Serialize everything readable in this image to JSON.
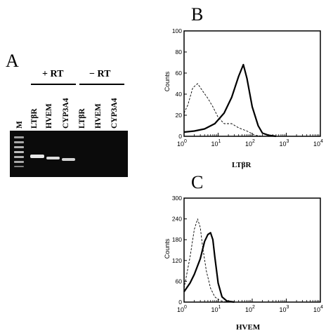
{
  "panel_a": {
    "letter": "A",
    "lane_m": "M",
    "rt_plus": "+ RT",
    "rt_minus": "− RT",
    "lanes": [
      "LTβR",
      "HVEM",
      "CYP3A4",
      "LTβR",
      "HVEM",
      "CYP3A4"
    ]
  },
  "chart_data": [
    {
      "panel": "B",
      "type": "line",
      "xscale": "log",
      "xlim": [
        1,
        10000
      ],
      "ylim": [
        0,
        100
      ],
      "yticks": [
        0,
        20,
        40,
        60,
        80,
        100
      ],
      "xticks": [
        "10^0",
        "10^1",
        "10^2",
        "10^3",
        "10^4"
      ],
      "ylabel": "Counts",
      "xlabel": "LTβR",
      "series": [
        {
          "style": "dashed",
          "x": [
            1,
            1.3,
            1.8,
            2.5,
            3.5,
            5,
            7,
            10,
            15,
            25,
            40,
            70,
            120,
            200
          ],
          "y": [
            22,
            30,
            46,
            50,
            43,
            36,
            28,
            18,
            12,
            12,
            8,
            5,
            1,
            0
          ]
        },
        {
          "style": "solid",
          "x": [
            1,
            2,
            4,
            8,
            15,
            25,
            40,
            55,
            70,
            100,
            150,
            200,
            300,
            500
          ],
          "y": [
            4,
            5,
            7,
            12,
            22,
            37,
            57,
            68,
            55,
            28,
            10,
            3,
            1,
            0
          ]
        }
      ]
    },
    {
      "panel": "C",
      "type": "line",
      "xscale": "log",
      "xlim": [
        1,
        10000
      ],
      "ylim": [
        0,
        300
      ],
      "yticks": [
        0,
        60,
        120,
        180,
        240,
        300
      ],
      "xticks": [
        "10^0",
        "10^1",
        "10^2",
        "10^3",
        "10^4"
      ],
      "ylabel": "Counts",
      "xlabel": "HVEM",
      "series": [
        {
          "style": "dashed",
          "x": [
            1,
            1.5,
            2,
            2.5,
            3,
            3.5,
            4.5,
            6,
            8,
            11,
            15,
            25
          ],
          "y": [
            40,
            130,
            210,
            240,
            215,
            160,
            90,
            40,
            15,
            5,
            1,
            0
          ]
        },
        {
          "style": "solid",
          "x": [
            1,
            1.5,
            2,
            3,
            4,
            5,
            6,
            7,
            8,
            10,
            13,
            18,
            30
          ],
          "y": [
            30,
            55,
            80,
            125,
            175,
            195,
            200,
            180,
            130,
            55,
            15,
            3,
            0
          ]
        }
      ]
    }
  ]
}
